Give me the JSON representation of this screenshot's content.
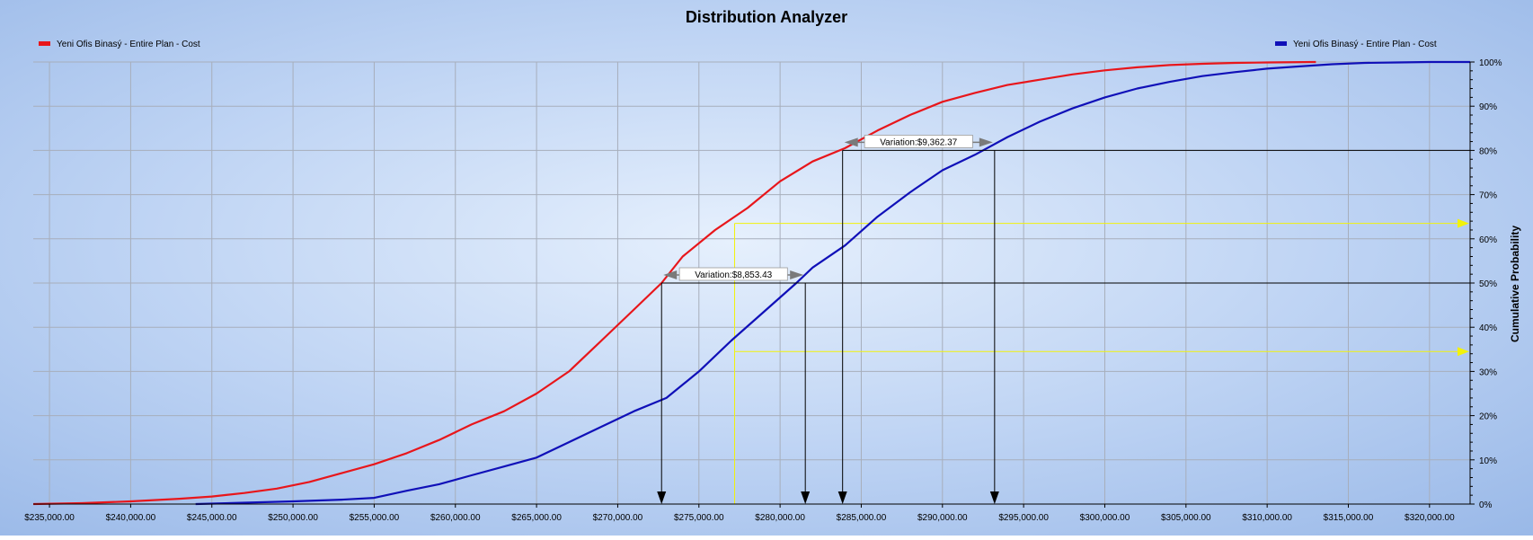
{
  "chart_data": {
    "type": "line",
    "title": "Distribution Analyzer",
    "xlabel": "",
    "ylabel": "Cumulative Probability",
    "xlim": [
      234000,
      322500
    ],
    "ylim": [
      0,
      100
    ],
    "grid": true,
    "legend_placement": "top-left and top-right",
    "x_ticks": [
      235000,
      240000,
      245000,
      250000,
      255000,
      260000,
      265000,
      270000,
      275000,
      280000,
      285000,
      290000,
      295000,
      300000,
      305000,
      310000,
      315000,
      320000
    ],
    "x_tick_labels": [
      "$235,000.00",
      "$240,000.00",
      "$245,000.00",
      "$250,000.00",
      "$255,000.00",
      "$260,000.00",
      "$265,000.00",
      "$270,000.00",
      "$275,000.00",
      "$280,000.00",
      "$285,000.00",
      "$290,000.00",
      "$295,000.00",
      "$300,000.00",
      "$305,000.00",
      "$310,000.00",
      "$315,000.00",
      "$320,000.00"
    ],
    "y_ticks": [
      0,
      10,
      20,
      30,
      40,
      50,
      60,
      70,
      80,
      90,
      100
    ],
    "y_tick_labels": [
      "0%",
      "10%",
      "20%",
      "30%",
      "40%",
      "50%",
      "60%",
      "70%",
      "80%",
      "90%",
      "100%"
    ],
    "series": [
      {
        "name": "Yeni Ofis Binasý - Entire Plan - Cost",
        "color": "#e8161b",
        "x": [
          234000,
          237000,
          240000,
          243000,
          245000,
          247000,
          249000,
          251000,
          253000,
          255000,
          257000,
          259000,
          261000,
          263000,
          265000,
          267000,
          269000,
          271000,
          272700,
          274000,
          276000,
          278000,
          280000,
          282000,
          284000,
          286000,
          288000,
          290000,
          292000,
          294000,
          296000,
          298000,
          300000,
          302000,
          304000,
          306000,
          308000,
          310000,
          313000
        ],
        "y": [
          0,
          0.2,
          0.6,
          1.2,
          1.7,
          2.5,
          3.5,
          5,
          7,
          9,
          11.5,
          14.5,
          18,
          21,
          25,
          30,
          37,
          44,
          50,
          56,
          62,
          67,
          73,
          77.5,
          80.5,
          84.5,
          88,
          91,
          93,
          94.8,
          96,
          97.2,
          98.1,
          98.8,
          99.3,
          99.6,
          99.8,
          99.9,
          100
        ]
      },
      {
        "name": "Yeni Ofis Binasý - Entire Plan - Cost",
        "color": "#1010b8",
        "x": [
          244000,
          247000,
          250000,
          253000,
          255000,
          257000,
          259000,
          261000,
          263000,
          265000,
          267000,
          269000,
          271000,
          273000,
          275000,
          277000,
          279000,
          281000,
          282000,
          284000,
          286000,
          288000,
          290000,
          292000,
          294000,
          296000,
          298000,
          300000,
          302000,
          304000,
          306000,
          308000,
          310000,
          312000,
          314000,
          316000,
          318000,
          320000,
          322500
        ],
        "y": [
          0,
          0.3,
          0.6,
          1,
          1.4,
          3,
          4.5,
          6.5,
          8.5,
          10.5,
          14,
          17.5,
          21,
          24,
          30,
          37,
          43.5,
          50,
          53.5,
          58.5,
          65,
          70.5,
          75.5,
          79,
          83,
          86.5,
          89.5,
          92,
          94,
          95.5,
          96.8,
          97.7,
          98.5,
          99,
          99.5,
          99.8,
          99.9,
          100,
          100
        ]
      }
    ],
    "annotations": [
      {
        "label": "Variation:$8,853.43",
        "x_from": 272700,
        "x_to": 281553.43,
        "y": 50
      },
      {
        "label": "Variation:$9,362.37",
        "x_from": 283850,
        "x_to": 293212.37,
        "y": 80
      }
    ],
    "reference_x": 277200,
    "reference_y": [
      63.5,
      34.5
    ]
  }
}
